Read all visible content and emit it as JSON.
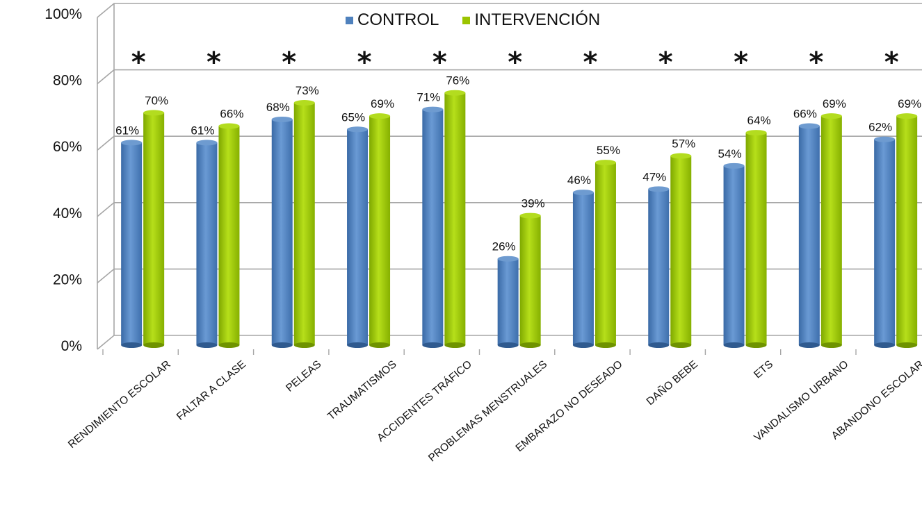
{
  "chart_data": {
    "type": "bar",
    "categories": [
      "RENDIMIENTO ESCOLAR",
      "FALTAR A CLASE",
      "PELEAS",
      "TRAUMATISMOS",
      "ACCIDENTES TRÁFICO",
      "PROBLEMAS MENSTRUALES",
      "EMBARAZO NO DESEADO",
      "DAÑO BEBE",
      "ETS",
      "VANDALISMO URBANO",
      "ABANDONO ESCOLAR"
    ],
    "series": [
      {
        "name": "CONTROL",
        "values": [
          61,
          61,
          68,
          65,
          71,
          26,
          46,
          47,
          54,
          66,
          62
        ],
        "labels": [
          "61%",
          "61%",
          "68%",
          "65%",
          "71%",
          "26%",
          "46%",
          "47%",
          "54%",
          "66%",
          "62%"
        ],
        "color": "#4f81bd"
      },
      {
        "name": "INTERVENCIÓN",
        "values": [
          70,
          66,
          73,
          69,
          76,
          39,
          55,
          57,
          64,
          69,
          69
        ],
        "labels": [
          "70%",
          "66%",
          "73%",
          "69%",
          "76%",
          "39%",
          "55%",
          "57%",
          "64%",
          "69%",
          "69%"
        ],
        "color": "#9bc400"
      }
    ],
    "yticks": [
      "0%",
      "20%",
      "40%",
      "60%",
      "80%",
      "100%"
    ],
    "ylim": [
      0,
      100
    ],
    "significance_marker": "*",
    "grid": true,
    "legend_position": "top-center"
  }
}
